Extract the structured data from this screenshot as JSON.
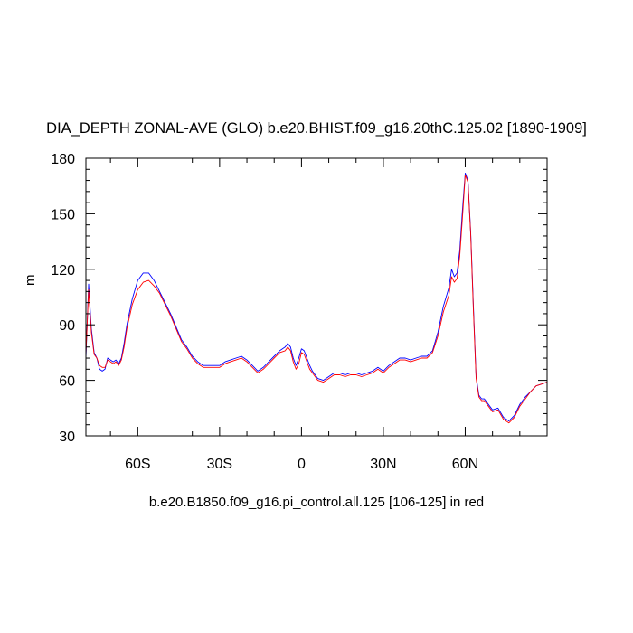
{
  "chart_data": {
    "type": "line",
    "title": "DIA_DEPTH ZONAL-AVE (GLO) b.e20.BHIST.f09_g16.20thC.125.02 [1890-1909]",
    "subtitle": "b.e20.B1850.f09_g16.pi_control.all.125 [106-125] in red",
    "ylabel": "m",
    "xlabel": "",
    "xlim": [
      -79,
      90
    ],
    "ylim": [
      30,
      180
    ],
    "x_ticks": [
      {
        "value": -60,
        "label": "60S"
      },
      {
        "value": -30,
        "label": "30S"
      },
      {
        "value": 0,
        "label": "0"
      },
      {
        "value": 30,
        "label": "30N"
      },
      {
        "value": 60,
        "label": "60N"
      }
    ],
    "y_ticks": [
      {
        "value": 30,
        "label": "30"
      },
      {
        "value": 60,
        "label": "60"
      },
      {
        "value": 90,
        "label": "90"
      },
      {
        "value": 120,
        "label": "120"
      },
      {
        "value": 150,
        "label": "150"
      },
      {
        "value": 180,
        "label": "180"
      }
    ],
    "grid": false,
    "series": [
      {
        "color": "#0000ff",
        "x": [
          -79,
          -78,
          -77,
          -76,
          -75,
          -74,
          -73,
          -72,
          -71,
          -70,
          -69,
          -68,
          -67,
          -66,
          -65,
          -64,
          -62,
          -60,
          -58,
          -56,
          -54,
          -52,
          -50,
          -48,
          -46,
          -44,
          -42,
          -40,
          -38,
          -36,
          -34,
          -32,
          -30,
          -28,
          -26,
          -24,
          -22,
          -20,
          -18,
          -16,
          -14,
          -12,
          -10,
          -8,
          -6,
          -5,
          -4,
          -3,
          -2,
          -1,
          0,
          1,
          2,
          3,
          4,
          5,
          6,
          8,
          10,
          12,
          14,
          16,
          18,
          20,
          22,
          24,
          26,
          28,
          30,
          32,
          34,
          36,
          38,
          40,
          42,
          44,
          46,
          48,
          50,
          52,
          54,
          55,
          56,
          57,
          58,
          59,
          60,
          61,
          62,
          63,
          64,
          65,
          66,
          67,
          68,
          70,
          72,
          74,
          76,
          78,
          80,
          82,
          84,
          86,
          88,
          90
        ],
        "values": [
          72,
          112,
          88,
          75,
          72,
          66,
          65,
          66,
          72,
          71,
          70,
          71,
          69,
          72,
          80,
          90,
          104,
          114,
          118,
          118,
          114,
          108,
          102,
          96,
          89,
          82,
          78,
          73,
          70,
          68,
          68,
          68,
          68,
          70,
          71,
          72,
          73,
          71,
          68,
          65,
          67,
          70,
          73,
          76,
          78,
          80,
          78,
          72,
          68,
          72,
          77,
          76,
          72,
          68,
          65,
          63,
          61,
          60,
          62,
          64,
          64,
          63,
          64,
          64,
          63,
          64,
          65,
          67,
          65,
          68,
          70,
          72,
          72,
          71,
          72,
          73,
          73,
          76,
          86,
          100,
          110,
          120,
          116,
          118,
          130,
          152,
          172,
          168,
          140,
          100,
          62,
          52,
          50,
          50,
          48,
          44,
          45,
          40,
          38,
          41,
          47,
          51,
          54,
          57,
          58,
          59
        ]
      },
      {
        "color": "#ff0000",
        "x": [
          -79,
          -78,
          -77,
          -76,
          -75,
          -74,
          -73,
          -72,
          -71,
          -70,
          -69,
          -68,
          -67,
          -66,
          -65,
          -64,
          -62,
          -60,
          -58,
          -56,
          -54,
          -52,
          -50,
          -48,
          -46,
          -44,
          -42,
          -40,
          -38,
          -36,
          -34,
          -32,
          -30,
          -28,
          -26,
          -24,
          -22,
          -20,
          -18,
          -16,
          -14,
          -12,
          -10,
          -8,
          -6,
          -5,
          -4,
          -3,
          -2,
          -1,
          0,
          1,
          2,
          3,
          4,
          5,
          6,
          8,
          10,
          12,
          14,
          16,
          18,
          20,
          22,
          24,
          26,
          28,
          30,
          32,
          34,
          36,
          38,
          40,
          42,
          44,
          46,
          48,
          50,
          52,
          54,
          55,
          56,
          57,
          58,
          59,
          60,
          61,
          62,
          63,
          64,
          65,
          66,
          67,
          68,
          70,
          72,
          74,
          76,
          78,
          80,
          82,
          84,
          86,
          88,
          90
        ],
        "values": [
          74,
          109,
          86,
          74,
          72,
          68,
          67,
          67,
          71,
          70,
          69,
          70,
          68,
          71,
          78,
          88,
          101,
          109,
          113,
          114,
          111,
          107,
          101,
          95,
          88,
          81,
          77,
          72,
          69,
          67,
          67,
          67,
          67,
          69,
          70,
          71,
          72,
          70,
          67,
          64,
          66,
          69,
          72,
          75,
          76,
          78,
          76,
          70,
          66,
          69,
          75,
          74,
          70,
          66,
          64,
          62,
          60,
          59,
          61,
          63,
          63,
          62,
          63,
          63,
          62,
          63,
          64,
          66,
          64,
          67,
          69,
          71,
          71,
          70,
          71,
          72,
          72,
          75,
          84,
          97,
          106,
          116,
          113,
          115,
          127,
          148,
          171,
          167,
          139,
          98,
          61,
          51,
          49,
          49,
          47,
          43,
          44,
          39,
          37,
          40,
          46,
          50,
          54,
          57,
          58,
          59
        ]
      }
    ]
  }
}
